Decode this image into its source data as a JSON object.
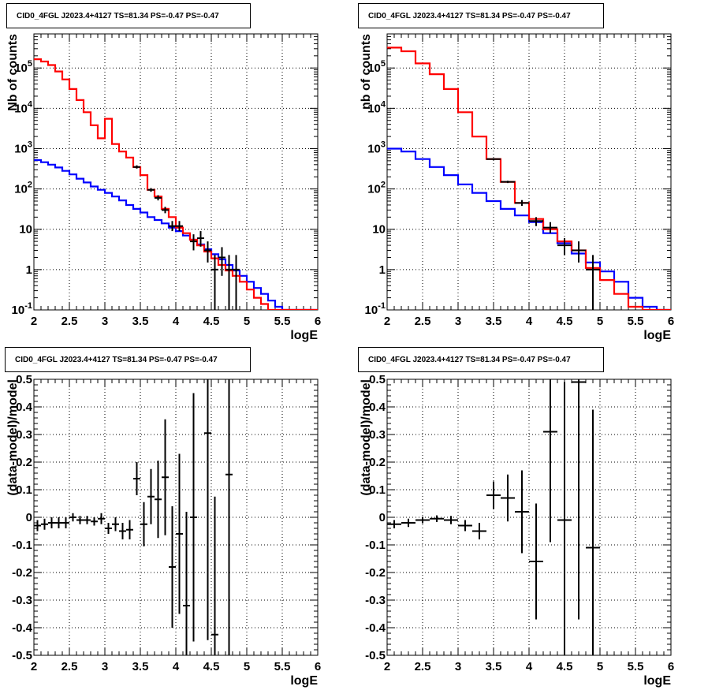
{
  "chart_data": [
    {
      "type": "line",
      "title": "CID0_4FGL J2023.4+4127 TS=81.34 PS=-0.47 PS=-0.47",
      "xlabel": "logE",
      "ylabel": "Nb of counts",
      "xlim": [
        2,
        6
      ],
      "ylim": [
        0.1,
        700000
      ],
      "yscale": "log",
      "grid": true,
      "xticks": [
        "2",
        "2.5",
        "3",
        "3.5",
        "4",
        "4.5",
        "5",
        "5.5",
        "6"
      ],
      "yticks": [
        "10^{-1}",
        "1",
        "10",
        "10^{2}",
        "10^{3}",
        "10^{4}",
        "10^{5}"
      ],
      "bin_edges": [
        2.0,
        2.1,
        2.2,
        2.3,
        2.4,
        2.5,
        2.6,
        2.7,
        2.8,
        2.9,
        3.0,
        3.1,
        3.2,
        3.3,
        3.4,
        3.5,
        3.6,
        3.7,
        3.8,
        3.9,
        4.0,
        4.1,
        4.2,
        4.3,
        4.4,
        4.5,
        4.6,
        4.7,
        4.8,
        4.9,
        5.0,
        5.1,
        5.2,
        5.3,
        5.4,
        5.5,
        5.6,
        5.7,
        5.8,
        5.9,
        6.0
      ],
      "series": [
        {
          "color": "#ff0000",
          "values": [
            165000,
            145000,
            118000,
            82000,
            52000,
            30000,
            16000,
            8000,
            3800,
            1800,
            5500,
            1300,
            850,
            600,
            350,
            220,
            95,
            65,
            32,
            20,
            11,
            8,
            5.5,
            4,
            2.8,
            1.9,
            1.3,
            0.95,
            0.7,
            0.5,
            0.32,
            0.2,
            0.14,
            0.1,
            0.1,
            0.1,
            0.1,
            0.1,
            0.1,
            0.1
          ]
        },
        {
          "color": "#0000ff",
          "values": [
            520,
            460,
            400,
            340,
            280,
            230,
            180,
            145,
            115,
            95,
            80,
            65,
            52,
            40,
            32,
            26,
            20,
            17,
            14,
            11,
            9,
            7,
            5.5,
            4.2,
            3.2,
            2.4,
            1.8,
            1.3,
            0.95,
            0.7,
            0.5,
            0.35,
            0.25,
            0.17,
            0.12,
            0.1,
            0.1,
            0.1,
            0.1,
            0.1
          ]
        }
      ],
      "data_points": [
        {
          "x": 3.45,
          "y": 350,
          "xerr": 0.05,
          "ylo": 320,
          "yhi": 385
        },
        {
          "x": 3.65,
          "y": 95,
          "xerr": 0.05,
          "ylo": 85,
          "yhi": 105
        },
        {
          "x": 3.75,
          "y": 60,
          "xerr": 0.05,
          "ylo": 52,
          "yhi": 70
        },
        {
          "x": 3.85,
          "y": 30,
          "xerr": 0.05,
          "ylo": 25,
          "yhi": 36
        },
        {
          "x": 3.95,
          "y": 12,
          "xerr": 0.05,
          "ylo": 9,
          "yhi": 16
        },
        {
          "x": 4.05,
          "y": 12,
          "xerr": 0.05,
          "ylo": 9,
          "yhi": 16
        },
        {
          "x": 4.25,
          "y": 5,
          "xerr": 0.05,
          "ylo": 3,
          "yhi": 7.5
        },
        {
          "x": 4.35,
          "y": 6,
          "xerr": 0.05,
          "ylo": 3.7,
          "yhi": 9
        },
        {
          "x": 4.45,
          "y": 3,
          "xerr": 0.05,
          "ylo": 1.5,
          "yhi": 5
        },
        {
          "x": 4.55,
          "y": 1,
          "xerr": 0.05,
          "ylo": 0.1,
          "yhi": 2.3
        },
        {
          "x": 4.65,
          "y": 2,
          "xerr": 0.05,
          "ylo": 0.7,
          "yhi": 3.6
        },
        {
          "x": 4.75,
          "y": 1,
          "xerr": 0.05,
          "ylo": 0.1,
          "yhi": 2.3
        },
        {
          "x": 4.85,
          "y": 1,
          "xerr": 0.05,
          "ylo": 0.1,
          "yhi": 2.3
        }
      ]
    },
    {
      "type": "line",
      "title": "CID0_4FGL J2023.4+4127 TS=81.34 PS=-0.47 PS=-0.47",
      "xlabel": "logE",
      "ylabel": "nb of counts",
      "xlim": [
        2,
        6
      ],
      "ylim": [
        0.1,
        700000
      ],
      "yscale": "log",
      "grid": true,
      "xticks": [
        "2",
        "2.5",
        "3",
        "3.5",
        "4",
        "4.5",
        "5",
        "5.5",
        "6"
      ],
      "yticks": [
        "10^{-1}",
        "1",
        "10",
        "10^{2}",
        "10^{3}",
        "10^{4}",
        "10^{5}"
      ],
      "bin_edges": [
        2.0,
        2.2,
        2.4,
        2.6,
        2.8,
        3.0,
        3.2,
        3.4,
        3.6,
        3.8,
        4.0,
        4.2,
        4.4,
        4.6,
        4.8,
        5.0,
        5.2,
        5.4,
        5.6,
        5.8,
        6.0
      ],
      "series": [
        {
          "color": "#ff0000",
          "values": [
            320000,
            260000,
            130000,
            70000,
            30000,
            8000,
            2000,
            550,
            150,
            45,
            18,
            10,
            5,
            3,
            1.1,
            0.55,
            0.25,
            0.12,
            0.1,
            0.1
          ]
        },
        {
          "color": "#0000ff",
          "values": [
            1000,
            850,
            550,
            350,
            220,
            130,
            80,
            50,
            32,
            22,
            15,
            8,
            4.5,
            2.5,
            1.5,
            0.9,
            0.5,
            0.2,
            0.12,
            0.1
          ]
        }
      ],
      "data_points": [
        {
          "x": 3.5,
          "y": 550,
          "xerr": 0.1,
          "ylo": 520,
          "yhi": 580
        },
        {
          "x": 3.7,
          "y": 150,
          "xerr": 0.1,
          "ylo": 140,
          "yhi": 160
        },
        {
          "x": 3.9,
          "y": 45,
          "xerr": 0.1,
          "ylo": 38,
          "yhi": 53
        },
        {
          "x": 4.1,
          "y": 16,
          "xerr": 0.1,
          "ylo": 12,
          "yhi": 20
        },
        {
          "x": 4.3,
          "y": 11,
          "xerr": 0.1,
          "ylo": 8,
          "yhi": 15
        },
        {
          "x": 4.5,
          "y": 4,
          "xerr": 0.1,
          "ylo": 2.3,
          "yhi": 6
        },
        {
          "x": 4.7,
          "y": 3,
          "xerr": 0.1,
          "ylo": 1.5,
          "yhi": 5
        },
        {
          "x": 4.9,
          "y": 1,
          "xerr": 0.1,
          "ylo": 0.1,
          "yhi": 2.3
        }
      ]
    },
    {
      "type": "scatter",
      "title": "CID0_4FGL J2023.4+4127 TS=81.34 PS=-0.47 PS=-0.47",
      "xlabel": "logE",
      "ylabel": "(data-model)/model",
      "xlim": [
        2,
        6
      ],
      "ylim": [
        -0.5,
        0.5
      ],
      "grid": true,
      "xticks": [
        "2",
        "2.5",
        "3",
        "3.5",
        "4",
        "4.5",
        "5",
        "5.5",
        "6"
      ],
      "yticks": [
        "-0.5",
        "-0.4",
        "-0.3",
        "-0.2",
        "-0.1",
        "0",
        "0.1",
        "0.2",
        "0.3",
        "0.4",
        "0.5"
      ],
      "points": [
        {
          "x": 2.05,
          "y": -0.03,
          "xerr": 0.05,
          "err": 0.02
        },
        {
          "x": 2.15,
          "y": -0.025,
          "xerr": 0.05,
          "err": 0.02
        },
        {
          "x": 2.25,
          "y": -0.02,
          "xerr": 0.05,
          "err": 0.02
        },
        {
          "x": 2.35,
          "y": -0.02,
          "xerr": 0.05,
          "err": 0.02
        },
        {
          "x": 2.45,
          "y": -0.02,
          "xerr": 0.05,
          "err": 0.02
        },
        {
          "x": 2.55,
          "y": 0.0,
          "xerr": 0.05,
          "err": 0.015
        },
        {
          "x": 2.65,
          "y": -0.01,
          "xerr": 0.05,
          "err": 0.015
        },
        {
          "x": 2.75,
          "y": -0.01,
          "xerr": 0.05,
          "err": 0.015
        },
        {
          "x": 2.85,
          "y": -0.015,
          "xerr": 0.05,
          "err": 0.015
        },
        {
          "x": 2.95,
          "y": -0.005,
          "xerr": 0.05,
          "err": 0.02
        },
        {
          "x": 3.05,
          "y": -0.04,
          "xerr": 0.05,
          "err": 0.02
        },
        {
          "x": 3.15,
          "y": -0.025,
          "xerr": 0.05,
          "err": 0.025
        },
        {
          "x": 3.25,
          "y": -0.05,
          "xerr": 0.05,
          "err": 0.03
        },
        {
          "x": 3.35,
          "y": -0.045,
          "xerr": 0.05,
          "err": 0.035
        },
        {
          "x": 3.45,
          "y": 0.14,
          "xerr": 0.05,
          "err": 0.06
        },
        {
          "x": 3.55,
          "y": -0.025,
          "xerr": 0.05,
          "err": 0.08
        },
        {
          "x": 3.65,
          "y": 0.075,
          "xerr": 0.05,
          "err": 0.1
        },
        {
          "x": 3.75,
          "y": 0.065,
          "xerr": 0.05,
          "err": 0.14
        },
        {
          "x": 3.85,
          "y": 0.145,
          "xerr": 0.05,
          "err": 0.21
        },
        {
          "x": 3.95,
          "y": -0.18,
          "xerr": 0.05,
          "err": 0.22
        },
        {
          "x": 4.05,
          "y": -0.06,
          "xerr": 0.05,
          "err": 0.29
        },
        {
          "x": 4.15,
          "y": -0.32,
          "xerr": 0.05,
          "err": 0.34
        },
        {
          "x": 4.25,
          "y": 0.0,
          "xerr": 0.05,
          "err": 0.45
        },
        {
          "x": 4.45,
          "y": 0.305,
          "xerr": 0.05,
          "err": 0.75
        },
        {
          "x": 4.55,
          "y": -0.425,
          "xerr": 0.05,
          "err": 0.5
        },
        {
          "x": 4.75,
          "y": 0.155,
          "xerr": 0.05,
          "err": 1.0
        }
      ]
    },
    {
      "type": "scatter",
      "title": "CID0_4FGL J2023.4+4127 TS=81.34 PS=-0.47 PS=-0.47",
      "xlabel": "logE",
      "ylabel": "(data-model)/model",
      "xlim": [
        2,
        6
      ],
      "ylim": [
        -0.5,
        0.5
      ],
      "grid": true,
      "xticks": [
        "2",
        "2.5",
        "3",
        "3.5",
        "4",
        "4.5",
        "5",
        "5.5",
        "6"
      ],
      "yticks": [
        "-0.5",
        "-0.4",
        "-0.3",
        "-0.2",
        "-0.1",
        "0",
        "0.1",
        "0.2",
        "0.3",
        "0.4",
        "0.5"
      ],
      "points": [
        {
          "x": 2.1,
          "y": -0.025,
          "xerr": 0.1,
          "err": 0.015
        },
        {
          "x": 2.3,
          "y": -0.02,
          "xerr": 0.1,
          "err": 0.015
        },
        {
          "x": 2.5,
          "y": -0.01,
          "xerr": 0.1,
          "err": 0.012
        },
        {
          "x": 2.7,
          "y": -0.005,
          "xerr": 0.1,
          "err": 0.012
        },
        {
          "x": 2.9,
          "y": -0.01,
          "xerr": 0.1,
          "err": 0.015
        },
        {
          "x": 3.1,
          "y": -0.03,
          "xerr": 0.1,
          "err": 0.02
        },
        {
          "x": 3.3,
          "y": -0.05,
          "xerr": 0.1,
          "err": 0.03
        },
        {
          "x": 3.5,
          "y": 0.08,
          "xerr": 0.1,
          "err": 0.05
        },
        {
          "x": 3.7,
          "y": 0.07,
          "xerr": 0.1,
          "err": 0.085
        },
        {
          "x": 3.9,
          "y": 0.02,
          "xerr": 0.1,
          "err": 0.15
        },
        {
          "x": 4.1,
          "y": -0.16,
          "xerr": 0.1,
          "err": 0.21
        },
        {
          "x": 4.3,
          "y": 0.31,
          "xerr": 0.1,
          "err": 0.4
        },
        {
          "x": 4.5,
          "y": -0.01,
          "xerr": 0.1,
          "err": 0.5
        },
        {
          "x": 4.7,
          "y": 0.49,
          "xerr": 0.1,
          "err": 0.86
        },
        {
          "x": 4.9,
          "y": -0.11,
          "xerr": 0.1,
          "err": 0.5
        }
      ]
    }
  ]
}
